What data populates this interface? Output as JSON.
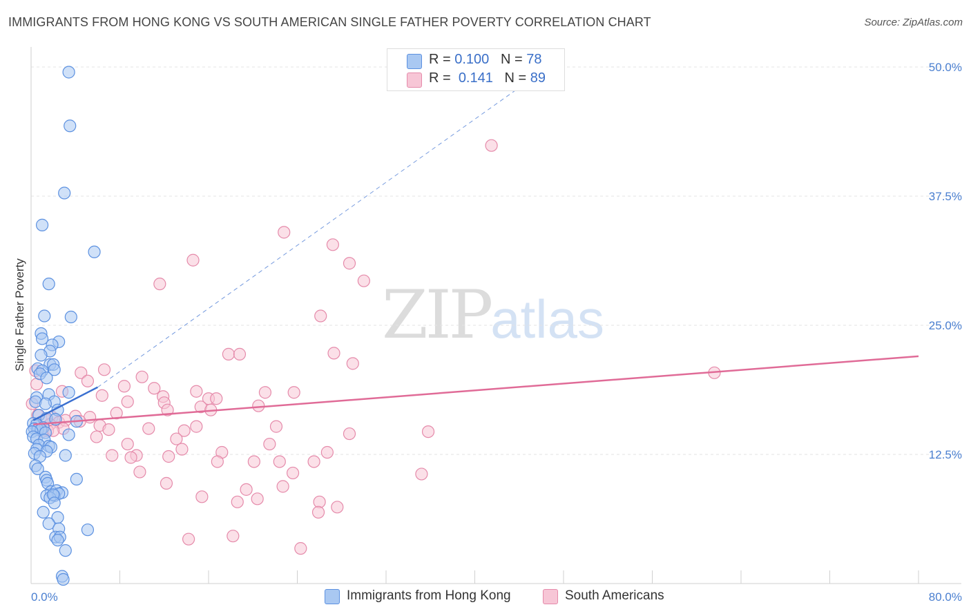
{
  "header": {
    "title": "IMMIGRANTS FROM HONG KONG VS SOUTH AMERICAN SINGLE FATHER POVERTY CORRELATION CHART",
    "source": "Source: ZipAtlas.com"
  },
  "watermark": {
    "zip": "ZIP",
    "atlas": "atlas"
  },
  "legend_top": {
    "rows": [
      {
        "r_label": "R = ",
        "r_value": "0.100",
        "n_label": "N = ",
        "n_value": "78"
      },
      {
        "r_label": "R = ",
        "r_value": "0.141",
        "n_label": "N = ",
        "n_value": "89"
      }
    ]
  },
  "chart_data": {
    "type": "scatter",
    "title": "IMMIGRANTS FROM HONG KONG VS SOUTH AMERICAN SINGLE FATHER POVERTY CORRELATION CHART",
    "xlabel": "",
    "ylabel": "Single Father Poverty",
    "xlim": [
      0,
      80
    ],
    "ylim": [
      0,
      50
    ],
    "x_tick_labels": [
      "0.0%",
      "80.0%"
    ],
    "y_ticks": [
      12.5,
      25.0,
      37.5,
      50.0
    ],
    "y_tick_labels": [
      "12.5%",
      "25.0%",
      "37.5%",
      "50.0%"
    ],
    "grid": true,
    "legend_position": "bottom",
    "colors": {
      "blue_fill": "#a9c8f2",
      "blue_stroke": "#5b90e0",
      "blue_line": "#3a6fd0",
      "pink_fill": "#f7c6d6",
      "pink_stroke": "#e58aaa",
      "pink_line": "#e06b97",
      "grid": "#e3e3e3",
      "tick": "#4a7fd0"
    },
    "series": [
      {
        "name": "Immigrants from Hong Kong",
        "color": "#a9c8f2",
        "trend": {
          "x": [
            0.2,
            6.0
          ],
          "y": [
            15.8,
            19.0
          ],
          "dashed_x": [
            6.0,
            44.0
          ],
          "dashed_y": [
            19.0,
            48.0
          ]
        },
        "points": [
          [
            3.4,
            49.5
          ],
          [
            3.5,
            44.3
          ],
          [
            3.0,
            37.8
          ],
          [
            1.0,
            34.7
          ],
          [
            5.7,
            32.1
          ],
          [
            1.6,
            29.0
          ],
          [
            1.2,
            25.9
          ],
          [
            3.6,
            25.8
          ],
          [
            0.9,
            24.2
          ],
          [
            1.0,
            23.7
          ],
          [
            2.5,
            23.4
          ],
          [
            1.9,
            23.1
          ],
          [
            1.7,
            22.5
          ],
          [
            0.9,
            22.1
          ],
          [
            1.7,
            21.2
          ],
          [
            2.0,
            21.2
          ],
          [
            0.6,
            20.8
          ],
          [
            1.0,
            20.6
          ],
          [
            2.1,
            20.7
          ],
          [
            0.8,
            20.3
          ],
          [
            1.4,
            19.9
          ],
          [
            3.4,
            18.5
          ],
          [
            1.6,
            18.3
          ],
          [
            0.5,
            18.0
          ],
          [
            0.4,
            17.6
          ],
          [
            2.1,
            17.6
          ],
          [
            1.3,
            17.4
          ],
          [
            2.4,
            16.8
          ],
          [
            0.7,
            16.3
          ],
          [
            1.4,
            16.0
          ],
          [
            2.2,
            15.9
          ],
          [
            0.2,
            15.5
          ],
          [
            0.5,
            15.4
          ],
          [
            1.1,
            15.1
          ],
          [
            4.1,
            15.7
          ],
          [
            0.3,
            15.0
          ],
          [
            0.6,
            14.9
          ],
          [
            0.9,
            14.9
          ],
          [
            0.1,
            14.7
          ],
          [
            1.3,
            14.6
          ],
          [
            3.4,
            14.4
          ],
          [
            0.2,
            14.2
          ],
          [
            0.5,
            14.0
          ],
          [
            1.2,
            13.9
          ],
          [
            0.7,
            13.4
          ],
          [
            1.6,
            13.3
          ],
          [
            1.8,
            13.2
          ],
          [
            0.5,
            13.0
          ],
          [
            1.4,
            12.8
          ],
          [
            0.3,
            12.6
          ],
          [
            0.8,
            12.3
          ],
          [
            3.1,
            12.4
          ],
          [
            0.4,
            11.4
          ],
          [
            0.6,
            11.1
          ],
          [
            1.3,
            10.3
          ],
          [
            1.4,
            10.0
          ],
          [
            4.1,
            10.1
          ],
          [
            1.5,
            9.7
          ],
          [
            1.8,
            8.9
          ],
          [
            2.3,
            9.0
          ],
          [
            2.8,
            8.8
          ],
          [
            1.4,
            8.5
          ],
          [
            2.1,
            8.5
          ],
          [
            2.5,
            8.7
          ],
          [
            1.7,
            8.3
          ],
          [
            2.0,
            8.6
          ],
          [
            2.1,
            7.8
          ],
          [
            1.1,
            6.9
          ],
          [
            2.4,
            6.4
          ],
          [
            1.6,
            5.8
          ],
          [
            2.5,
            5.3
          ],
          [
            5.1,
            5.2
          ],
          [
            2.2,
            4.5
          ],
          [
            2.6,
            4.5
          ],
          [
            2.4,
            4.2
          ],
          [
            3.1,
            3.2
          ],
          [
            2.8,
            0.7
          ],
          [
            2.9,
            0.4
          ]
        ]
      },
      {
        "name": "South Americans",
        "color": "#f7c6d6",
        "trend": {
          "x": [
            0.2,
            80.0
          ],
          "y": [
            15.4,
            22.0
          ]
        },
        "points": [
          [
            41.5,
            42.4
          ],
          [
            22.8,
            34.0
          ],
          [
            27.2,
            32.8
          ],
          [
            14.6,
            31.3
          ],
          [
            28.7,
            31.0
          ],
          [
            11.6,
            29.0
          ],
          [
            30.0,
            29.3
          ],
          [
            26.1,
            25.9
          ],
          [
            17.8,
            22.2
          ],
          [
            18.8,
            22.2
          ],
          [
            27.3,
            22.3
          ],
          [
            29.0,
            21.3
          ],
          [
            0.4,
            20.6
          ],
          [
            6.6,
            20.7
          ],
          [
            4.5,
            20.4
          ],
          [
            61.6,
            20.4
          ],
          [
            10.0,
            20.0
          ],
          [
            5.1,
            19.6
          ],
          [
            0.5,
            19.3
          ],
          [
            8.4,
            19.1
          ],
          [
            11.1,
            18.9
          ],
          [
            14.9,
            18.6
          ],
          [
            2.8,
            18.6
          ],
          [
            21.1,
            18.5
          ],
          [
            23.7,
            18.5
          ],
          [
            6.4,
            18.2
          ],
          [
            11.9,
            18.1
          ],
          [
            16.0,
            17.9
          ],
          [
            16.7,
            17.9
          ],
          [
            8.7,
            17.6
          ],
          [
            12.0,
            17.5
          ],
          [
            20.5,
            17.2
          ],
          [
            0.1,
            17.4
          ],
          [
            15.3,
            17.1
          ],
          [
            16.2,
            16.8
          ],
          [
            12.3,
            16.8
          ],
          [
            7.7,
            16.5
          ],
          [
            0.6,
            16.3
          ],
          [
            4.0,
            16.2
          ],
          [
            5.3,
            16.1
          ],
          [
            1.9,
            16.1
          ],
          [
            1.3,
            15.9
          ],
          [
            2.5,
            15.6
          ],
          [
            3.1,
            15.8
          ],
          [
            4.4,
            15.7
          ],
          [
            1.7,
            15.4
          ],
          [
            6.2,
            15.3
          ],
          [
            22.1,
            15.2
          ],
          [
            14.9,
            15.2
          ],
          [
            2.9,
            15.0
          ],
          [
            1.5,
            14.8
          ],
          [
            0.8,
            14.9
          ],
          [
            1.0,
            14.7
          ],
          [
            2.0,
            14.8
          ],
          [
            7.0,
            14.9
          ],
          [
            10.6,
            15.0
          ],
          [
            13.8,
            14.8
          ],
          [
            28.7,
            14.5
          ],
          [
            35.8,
            14.7
          ],
          [
            5.9,
            14.2
          ],
          [
            13.1,
            14.0
          ],
          [
            8.7,
            13.5
          ],
          [
            21.5,
            13.5
          ],
          [
            13.6,
            13.0
          ],
          [
            17.2,
            12.7
          ],
          [
            26.7,
            12.7
          ],
          [
            7.3,
            12.4
          ],
          [
            9.5,
            12.4
          ],
          [
            12.4,
            12.3
          ],
          [
            9.0,
            12.2
          ],
          [
            25.5,
            11.8
          ],
          [
            20.1,
            11.8
          ],
          [
            22.4,
            11.8
          ],
          [
            16.8,
            11.8
          ],
          [
            9.8,
            10.8
          ],
          [
            23.6,
            10.7
          ],
          [
            35.2,
            10.6
          ],
          [
            12.2,
            9.7
          ],
          [
            22.7,
            9.4
          ],
          [
            15.4,
            8.4
          ],
          [
            19.4,
            9.1
          ],
          [
            20.4,
            8.2
          ],
          [
            18.6,
            7.9
          ],
          [
            26.0,
            7.9
          ],
          [
            27.6,
            7.4
          ],
          [
            25.9,
            6.9
          ],
          [
            14.2,
            4.3
          ],
          [
            18.2,
            4.6
          ],
          [
            24.3,
            3.4
          ]
        ]
      }
    ]
  }
}
